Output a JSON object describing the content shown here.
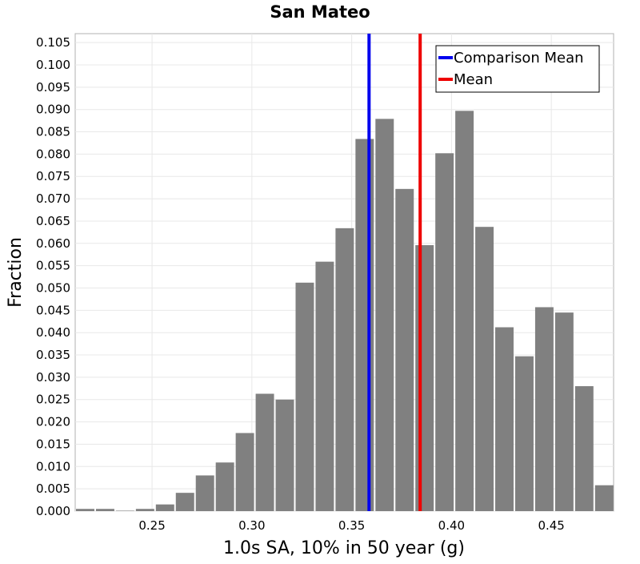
{
  "chart_data": {
    "type": "bar",
    "title": "San Mateo",
    "xlabel": "1.0s SA, 10% in 50 year (g)",
    "ylabel": "Fraction",
    "xlim": [
      0.2115,
      0.4812
    ],
    "ylim": [
      0,
      0.107
    ],
    "x_ticks": [
      "0.25",
      "0.30",
      "0.35",
      "0.40",
      "0.45"
    ],
    "y_ticks": [
      "0.000",
      "0.005",
      "0.010",
      "0.015",
      "0.020",
      "0.025",
      "0.030",
      "0.035",
      "0.040",
      "0.045",
      "0.050",
      "0.055",
      "0.060",
      "0.065",
      "0.070",
      "0.075",
      "0.080",
      "0.085",
      "0.090",
      "0.095",
      "0.100",
      "0.105"
    ],
    "grid": true,
    "legend_position": "top-right",
    "bar_color": "#808080",
    "bin_width": 0.01,
    "bin_start": 0.2115,
    "values": [
      0.0005,
      0.0005,
      0.0001,
      0.0005,
      0.0015,
      0.0041,
      0.008,
      0.0109,
      0.0175,
      0.0263,
      0.025,
      0.0512,
      0.0559,
      0.0634,
      0.0834,
      0.0879,
      0.0722,
      0.0596,
      0.0802,
      0.0897,
      0.0637,
      0.0412,
      0.0347,
      0.0457,
      0.0445,
      0.028,
      0.0058
    ],
    "series": [
      {
        "name": "Comparison Mean",
        "x": 0.3587,
        "color": "#0000ee"
      },
      {
        "name": "Mean",
        "x": 0.3843,
        "color": "#ee0000"
      }
    ]
  }
}
